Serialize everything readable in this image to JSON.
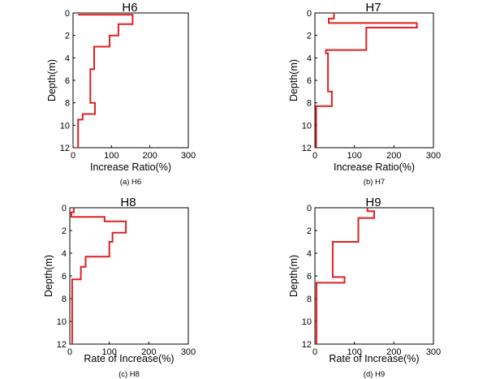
{
  "colors": {
    "series": "#e02020",
    "axis": "#000000",
    "background": "#ffffff"
  },
  "chart_data": [
    {
      "type": "line",
      "title": "H6",
      "caption": "(a) H6",
      "xlabel": "Increase Ratio(%)",
      "ylabel": "Depth(m)",
      "xlim": [
        0,
        300
      ],
      "ylim": [
        12,
        0
      ],
      "y_inverted": true,
      "xticks": [
        0,
        100,
        200,
        300
      ],
      "yticks": [
        0,
        2,
        4,
        6,
        8,
        10,
        12
      ],
      "grid": false,
      "series": [
        {
          "points": [
            [
              13,
              0.15
            ],
            [
              155,
              0.15
            ],
            [
              155,
              1.0
            ],
            [
              118,
              1.0
            ],
            [
              118,
              2.0
            ],
            [
              95,
              2.0
            ],
            [
              95,
              3.0
            ],
            [
              55,
              3.0
            ],
            [
              55,
              5.0
            ],
            [
              45,
              5.0
            ],
            [
              45,
              8.0
            ],
            [
              57,
              8.0
            ],
            [
              57,
              9.0
            ],
            [
              25,
              9.0
            ],
            [
              25,
              9.5
            ],
            [
              13,
              9.5
            ],
            [
              13,
              12
            ]
          ]
        }
      ]
    },
    {
      "type": "line",
      "title": "H7",
      "caption": "(b) H7",
      "xlabel": "Increase Ratio(%)",
      "ylabel": "Depth(m)",
      "xlim": [
        0,
        300
      ],
      "ylim": [
        12,
        0
      ],
      "y_inverted": true,
      "xticks": [
        0,
        100,
        200,
        300
      ],
      "yticks": [
        0,
        2,
        4,
        6,
        8,
        10,
        12
      ],
      "grid": false,
      "series": [
        {
          "points": [
            [
              48,
              0
            ],
            [
              48,
              0.5
            ],
            [
              35,
              0.5
            ],
            [
              35,
              0.9
            ],
            [
              258,
              0.9
            ],
            [
              258,
              1.3
            ],
            [
              130,
              1.3
            ],
            [
              130,
              3.3
            ],
            [
              28,
              3.3
            ],
            [
              28,
              3.6
            ],
            [
              33,
              3.6
            ],
            [
              33,
              7.0
            ],
            [
              43,
              7.0
            ],
            [
              43,
              8.3
            ],
            [
              3,
              8.3
            ],
            [
              3,
              12
            ]
          ]
        }
      ]
    },
    {
      "type": "line",
      "title": "H8",
      "caption": "(c) H8",
      "xlabel": "Rate of Increase(%)",
      "ylabel": "Depth(m)",
      "xlim": [
        0,
        300
      ],
      "ylim": [
        12,
        0
      ],
      "y_inverted": true,
      "xticks": [
        0,
        100,
        200,
        300
      ],
      "yticks": [
        0,
        2,
        4,
        6,
        8,
        10,
        12
      ],
      "grid": false,
      "series": [
        {
          "points": [
            [
              10,
              0
            ],
            [
              10,
              0.4
            ],
            [
              4,
              0.4
            ],
            [
              4,
              0.8
            ],
            [
              88,
              0.8
            ],
            [
              88,
              1.2
            ],
            [
              142,
              1.2
            ],
            [
              142,
              2.2
            ],
            [
              108,
              2.2
            ],
            [
              108,
              3.0
            ],
            [
              100,
              3.0
            ],
            [
              100,
              4.3
            ],
            [
              40,
              4.3
            ],
            [
              40,
              5.2
            ],
            [
              28,
              5.2
            ],
            [
              28,
              6.3
            ],
            [
              6,
              6.3
            ],
            [
              6,
              12
            ]
          ]
        }
      ]
    },
    {
      "type": "line",
      "title": "H9",
      "caption": "(d) H9",
      "xlabel": "Rate of Increase(%)",
      "ylabel": "Depth(m)",
      "xlim": [
        0,
        300
      ],
      "ylim": [
        12,
        0
      ],
      "y_inverted": true,
      "xticks": [
        0,
        100,
        200,
        300
      ],
      "yticks": [
        0,
        2,
        4,
        6,
        8,
        10,
        12
      ],
      "grid": false,
      "series": [
        {
          "points": [
            [
              133,
              0
            ],
            [
              133,
              0.3
            ],
            [
              150,
              0.3
            ],
            [
              150,
              0.9
            ],
            [
              110,
              0.9
            ],
            [
              110,
              3.0
            ],
            [
              45,
              3.0
            ],
            [
              45,
              6.1
            ],
            [
              75,
              6.1
            ],
            [
              75,
              6.6
            ],
            [
              4,
              6.6
            ],
            [
              4,
              12
            ]
          ]
        }
      ]
    }
  ]
}
